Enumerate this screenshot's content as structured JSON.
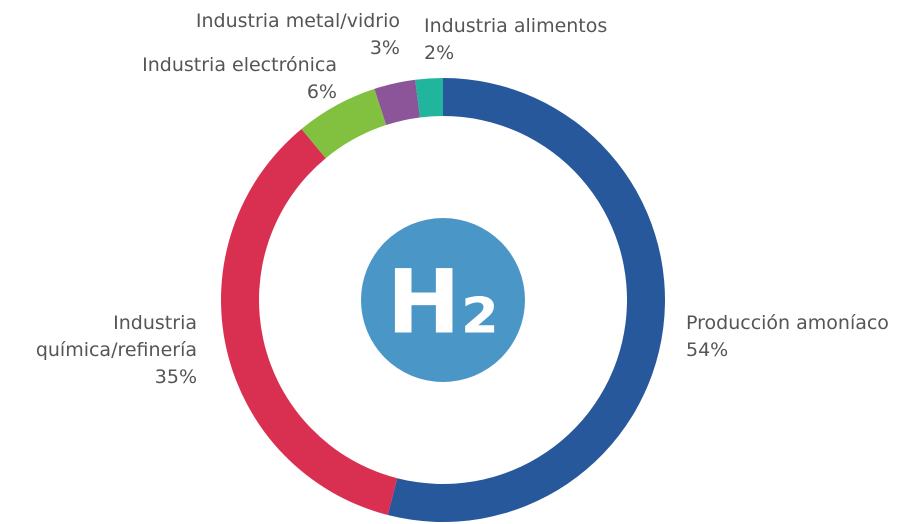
{
  "chart_data": {
    "type": "donut",
    "center_label": "H₂",
    "categories": [
      "Producción amoníaco",
      "Industria química/refinería",
      "Industria electrónica",
      "Industria metal/vidrio",
      "Industria alimentos"
    ],
    "values": [
      54,
      35,
      6,
      3,
      2
    ],
    "value_labels": [
      "54%",
      "35%",
      "6%",
      "3%",
      "2%"
    ],
    "colors": [
      "#27589b",
      "#d93052",
      "#82c03f",
      "#8d5599",
      "#21b59e"
    ],
    "center_color": "#4a96c6"
  }
}
